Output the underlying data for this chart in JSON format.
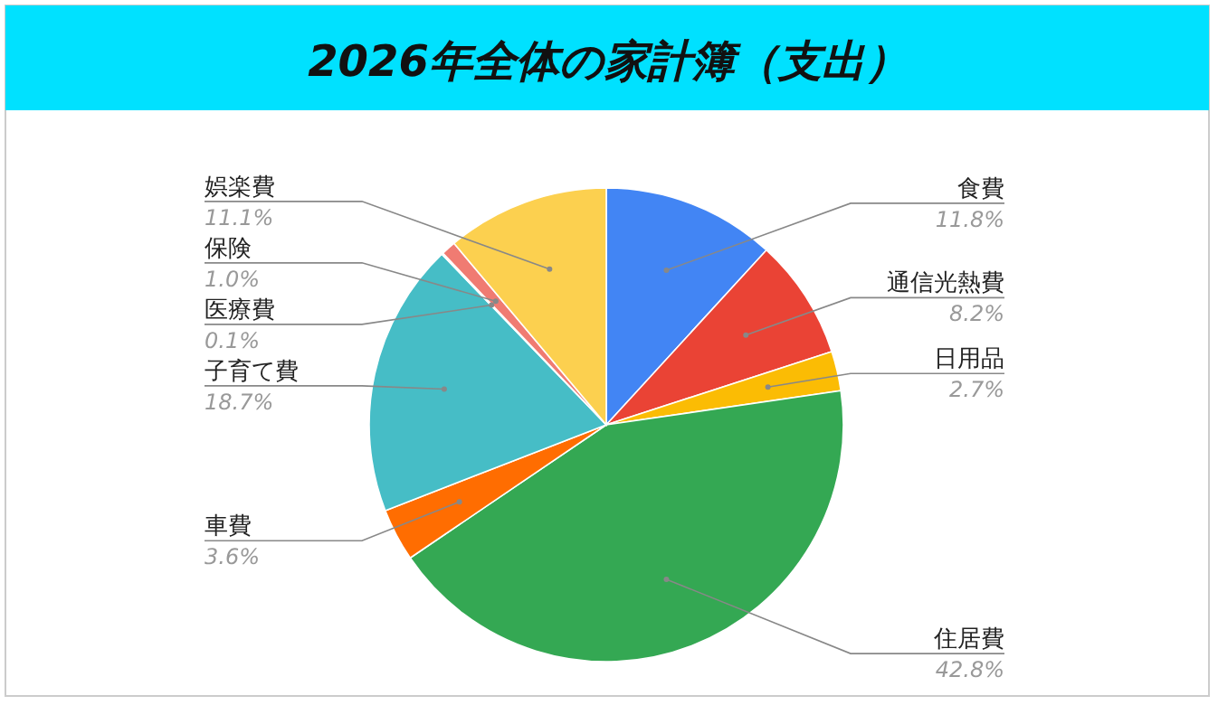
{
  "chart_data": {
    "type": "pie",
    "title": "2026年全体の家計簿（支出）",
    "categories": [
      "食費",
      "通信光熱費",
      "日用品",
      "住居費",
      "車費",
      "子育て費",
      "医療費",
      "保険",
      "娯楽費"
    ],
    "values": [
      11.8,
      8.2,
      2.7,
      42.8,
      3.6,
      18.7,
      0.1,
      1.0,
      11.1
    ],
    "value_labels": [
      "11.8%",
      "8.2%",
      "2.7%",
      "42.8%",
      "3.6%",
      "18.7%",
      "0.1%",
      "1.0%",
      "11.1%"
    ],
    "colors": [
      "#4285f4",
      "#ea4335",
      "#fbbc04",
      "#34a853",
      "#ff6d01",
      "#46bdc6",
      "#7baaf7",
      "#f07b72",
      "#fcd04f"
    ]
  }
}
